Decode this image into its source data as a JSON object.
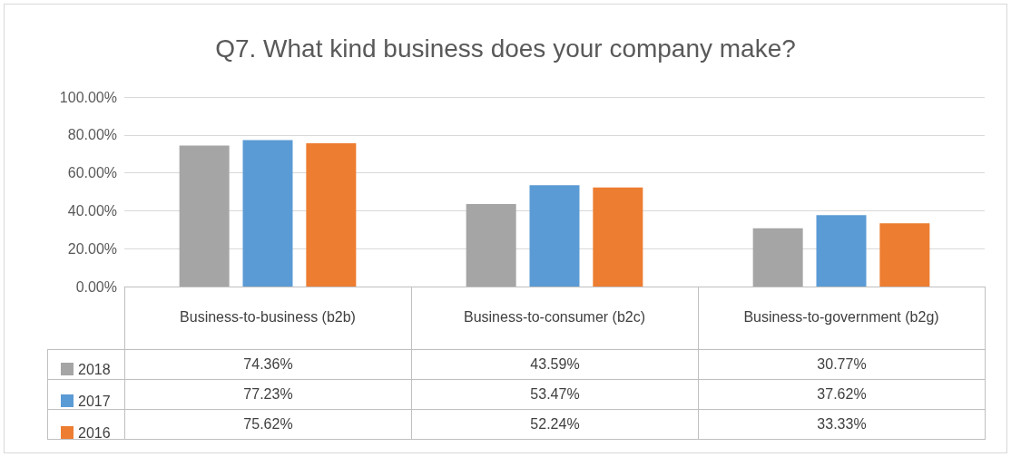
{
  "chart_data": {
    "type": "bar",
    "title": "Q7. What kind business does your company make?",
    "categories": [
      "Business-to-business (b2b)",
      "Business-to-consumer (b2c)",
      "Business-to-government (b2g)"
    ],
    "series": [
      {
        "name": "2018",
        "color": "#a5a5a5",
        "values": [
          74.36,
          43.59,
          30.77
        ],
        "value_labels": [
          "74.36%",
          "43.59%",
          "30.77%"
        ]
      },
      {
        "name": "2017",
        "color": "#5b9bd5",
        "values": [
          77.23,
          53.47,
          37.62
        ],
        "value_labels": [
          "77.23%",
          "53.47%",
          "37.62%"
        ]
      },
      {
        "name": "2016",
        "color": "#ed7d31",
        "values": [
          75.62,
          52.24,
          33.33
        ],
        "value_labels": [
          "75.62%",
          "52.24%",
          "33.33%"
        ]
      }
    ],
    "ylim": [
      0,
      100
    ],
    "yticks": [
      {
        "value": 0,
        "label": "0.00%"
      },
      {
        "value": 20,
        "label": "20.00%"
      },
      {
        "value": 40,
        "label": "40.00%"
      },
      {
        "value": 60,
        "label": "60.00%"
      },
      {
        "value": 80,
        "label": "80.00%"
      },
      {
        "value": 100,
        "label": "100.00%"
      }
    ],
    "grid": "y",
    "legend": "bottom left"
  }
}
